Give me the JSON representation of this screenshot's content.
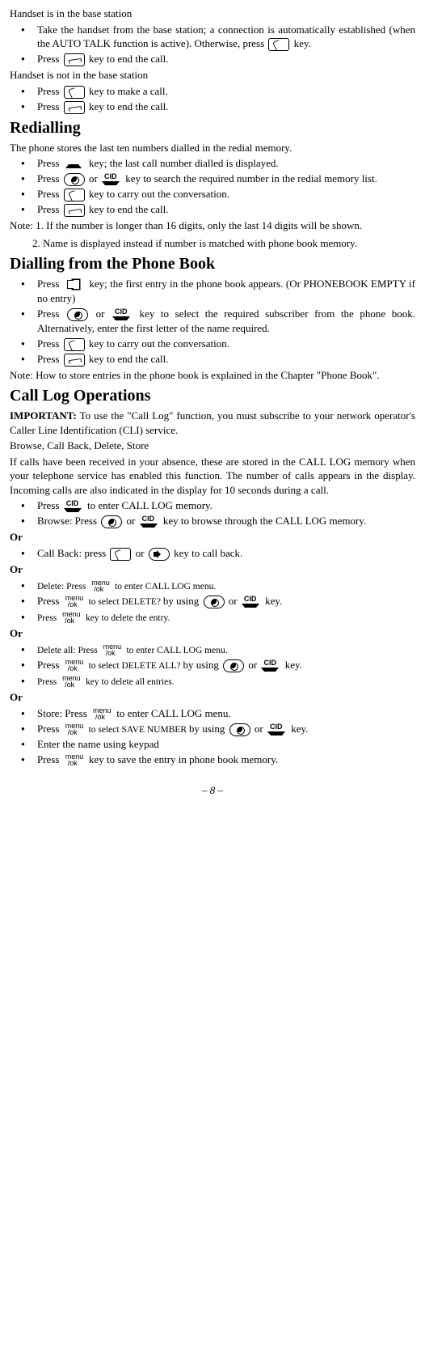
{
  "s1_title": "Handset is in the base station",
  "s1_b1a": "Take the handset from the base station; a connection is automatically established (when the AUTO TALK function is active). Otherwise, press ",
  "s1_b1b": " key.",
  "s1_b2a": "Press ",
  "s1_b2b": " key to end the call.",
  "s2_title": "Handset is not in the base station",
  "s2_b1a": "Press ",
  "s2_b1b": " key to make a call.",
  "s2_b2a": "Press ",
  "s2_b2b": " key to end the call.",
  "redial_title": "Redialling",
  "redial_intro": "The phone stores the last ten numbers dialled in the redial memory.",
  "r_b1a": "Press ",
  "r_b1b": " key; the last call number dialled is displayed.",
  "r_b2a": "Press ",
  "r_b2b": " or ",
  "r_b2c": " key to search the required number in the redial memory list.",
  "r_b3a": "Press ",
  "r_b3b": " key to carry out the conversation.",
  "r_b4a": "Press ",
  "r_b4b": " key to end the call.",
  "r_note1": "Note: 1. If the number is longer than 16 digits, only the last 14 digits will be shown.",
  "r_note2": "2. Name is displayed instead if number is matched with phone book memory.",
  "pb_title": "Dialling from the Phone Book",
  "pb_b1a": "Press ",
  "pb_b1b": " key; the first entry in the phone book appears. (Or PHONEBOOK EMPTY if no entry)",
  "pb_b2a": "Press ",
  "pb_b2b": " or ",
  "pb_b2c": "  key to select the required subscriber from the phone book. Alternatively, enter the first letter of the name required.",
  "pb_b3a": "Press ",
  "pb_b3b": " key to carry out the conversation.",
  "pb_b4a": "Press ",
  "pb_b4b": " key to end the call.",
  "pb_note": "Note: How to store entries in the phone book is explained in the Chapter \"Phone Book\".",
  "cl_title": "Call Log Operations",
  "cl_imp_label": "IMPORTANT:",
  "cl_imp": " To use the \"Call Log\" function, you must subscribe to your network operator's Caller Line Identification (CLI) service.",
  "cl_sub": "Browse, Call Back, Delete, Store",
  "cl_p1": "If calls have been received in your absence, these are stored in the CALL LOG memory when your telephone service has enabled this function. The number of calls appears in the display. Incoming calls are also indicated in the display for 10 seconds during a call.",
  "cl_b1a": "Press ",
  "cl_b1b": " to enter CALL LOG memory.",
  "cl_b2a": "Browse: Press  ",
  "cl_b2b": " or ",
  "cl_b2c": " key to browse through the CALL LOG memory.",
  "or": "Or",
  "cl_b3a": "Call Back: press ",
  "cl_b3b": " or ",
  "cl_b3c": " key to call back.",
  "cl_b4a": "Delete: Press ",
  "cl_b4b": " to enter CALL LOG menu.",
  "cl_b5a": "Press ",
  "cl_b5b": " to select DELETE? ",
  "cl_b5c": "by using ",
  "cl_b5d": " or ",
  "cl_b5e": " key.",
  "cl_b6a": "Press ",
  "cl_b6b": " key to delete the entry.",
  "cl_b7a": "Delete all: Press ",
  "cl_b7b": " to enter CALL LOG menu.",
  "cl_b8a": "Press ",
  "cl_b8b": " to select DELETE ALL? ",
  "cl_b8c": "by using ",
  "cl_b8d": " or ",
  "cl_b8e": " key.",
  "cl_b9a": "Press ",
  "cl_b9b": " key to delete all entries.",
  "cl_b10a": "Store: Press ",
  "cl_b10b": " to enter CALL LOG menu.",
  "cl_b11a": "Press ",
  "cl_b11b": " to select SAVE NUMBER ",
  "cl_b11c": "by using ",
  "cl_b11d": " or ",
  "cl_b11e": " key.",
  "cl_b12": " Enter the name using keypad",
  "cl_b13a": "Press ",
  "cl_b13b": " key to save the entry in phone book memory.",
  "pagenum": "– 8 –"
}
